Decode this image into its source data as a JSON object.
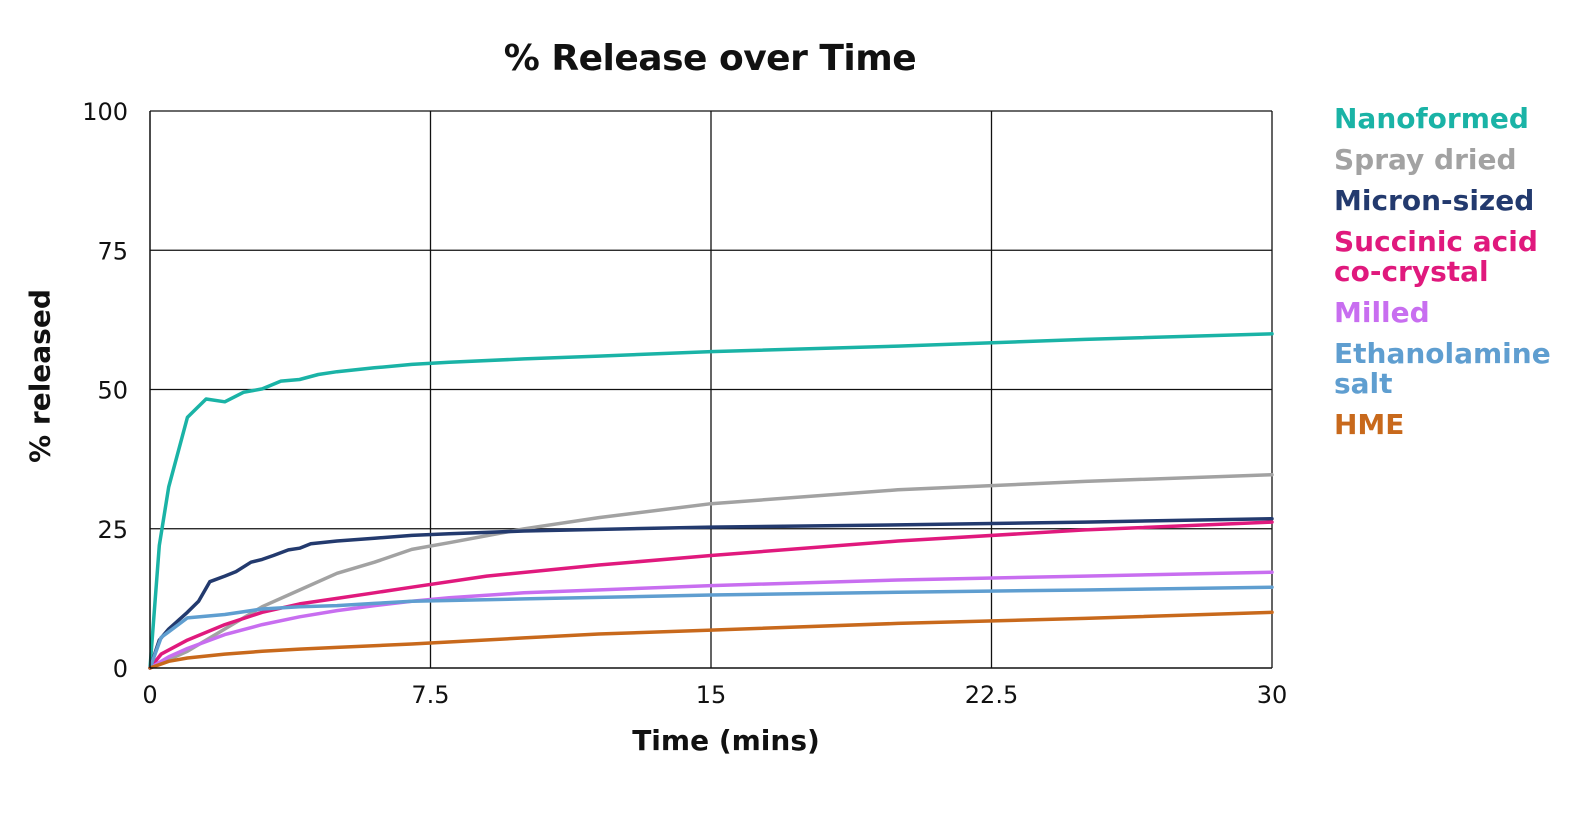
{
  "chart_data": {
    "type": "line",
    "title": "% Release over Time",
    "xlabel": "Time (mins)",
    "ylabel": "% released",
    "xlim": [
      0,
      30
    ],
    "ylim": [
      0,
      100
    ],
    "xticks": [
      0,
      7.5,
      15,
      22.5,
      30
    ],
    "xtick_labels": [
      "0",
      "7.5",
      "15",
      "22.5",
      "30"
    ],
    "yticks": [
      0,
      25,
      50,
      75,
      100
    ],
    "ytick_labels": [
      "0",
      "25",
      "50",
      "75",
      "100"
    ],
    "grid": true,
    "legend_position": "right",
    "series": [
      {
        "name": "Nanoformed",
        "color": "#1ab3a6",
        "x": [
          0,
          0.25,
          0.5,
          1,
          1.5,
          2,
          2.5,
          3,
          3.5,
          4,
          4.5,
          5,
          6,
          7,
          8,
          10,
          12,
          15,
          20,
          25,
          30
        ],
        "y": [
          0,
          22,
          32.5,
          45,
          48.3,
          47.8,
          49.5,
          50.1,
          51.5,
          51.8,
          52.7,
          53.2,
          53.9,
          54.5,
          54.9,
          55.5,
          56,
          56.8,
          57.8,
          59,
          60
        ]
      },
      {
        "name": "Spray dried",
        "color": "#a2a2a2",
        "x": [
          0,
          1,
          2,
          3,
          4,
          5,
          6,
          7,
          8,
          10,
          12,
          15,
          20,
          25,
          30
        ],
        "y": [
          0,
          3,
          7,
          11,
          14,
          17,
          19,
          21.3,
          22.5,
          25,
          27,
          29.5,
          32,
          33.5,
          34.7
        ]
      },
      {
        "name": "Micron-sized",
        "color": "#233a6e",
        "x": [
          0,
          0.25,
          0.5,
          1,
          1.3,
          1.6,
          2,
          2.3,
          2.7,
          3,
          3.3,
          3.7,
          4,
          4.3,
          5,
          6,
          7,
          8,
          10,
          15,
          20,
          25,
          30
        ],
        "y": [
          0,
          5,
          7,
          10,
          12,
          15.5,
          16.5,
          17.3,
          19,
          19.5,
          20.2,
          21.2,
          21.5,
          22.3,
          22.8,
          23.3,
          23.8,
          24.1,
          24.6,
          25.3,
          25.7,
          26.2,
          26.8
        ]
      },
      {
        "name": "Succinic acid\nco-crystal",
        "color": "#e0197d",
        "x": [
          0,
          0.3,
          1,
          2,
          3,
          4,
          5,
          6,
          7,
          9,
          12,
          15,
          20,
          25,
          30
        ],
        "y": [
          0,
          2.5,
          5,
          7.8,
          10,
          11.5,
          12.5,
          13.5,
          14.5,
          16.5,
          18.5,
          20.2,
          22.8,
          24.8,
          26.2
        ]
      },
      {
        "name": "Milled",
        "color": "#c86ef0",
        "x": [
          0,
          0.5,
          1,
          2,
          3,
          4,
          5,
          6,
          7,
          8,
          10,
          15,
          20,
          25,
          30
        ],
        "y": [
          0,
          2,
          3.5,
          6,
          7.8,
          9.2,
          10.3,
          11.2,
          12,
          12.6,
          13.5,
          14.8,
          15.8,
          16.5,
          17.2
        ]
      },
      {
        "name": "Ethanolamine\nsalt",
        "color": "#5f9ed0",
        "x": [
          0,
          0.3,
          0.5,
          1,
          2,
          3,
          4,
          5,
          6,
          7,
          10,
          15,
          20,
          25,
          30
        ],
        "y": [
          0,
          5.5,
          6.5,
          9,
          9.6,
          10.6,
          11,
          11.2,
          11.6,
          12,
          12.4,
          13.1,
          13.6,
          14,
          14.5
        ]
      },
      {
        "name": "HME",
        "color": "#c8691c",
        "x": [
          0,
          0.5,
          1,
          2,
          3,
          4,
          5,
          7,
          10,
          12,
          15,
          20,
          25,
          30
        ],
        "y": [
          0,
          1.2,
          1.8,
          2.5,
          3,
          3.4,
          3.7,
          4.3,
          5.4,
          6.1,
          6.8,
          8,
          8.9,
          10
        ]
      }
    ]
  }
}
